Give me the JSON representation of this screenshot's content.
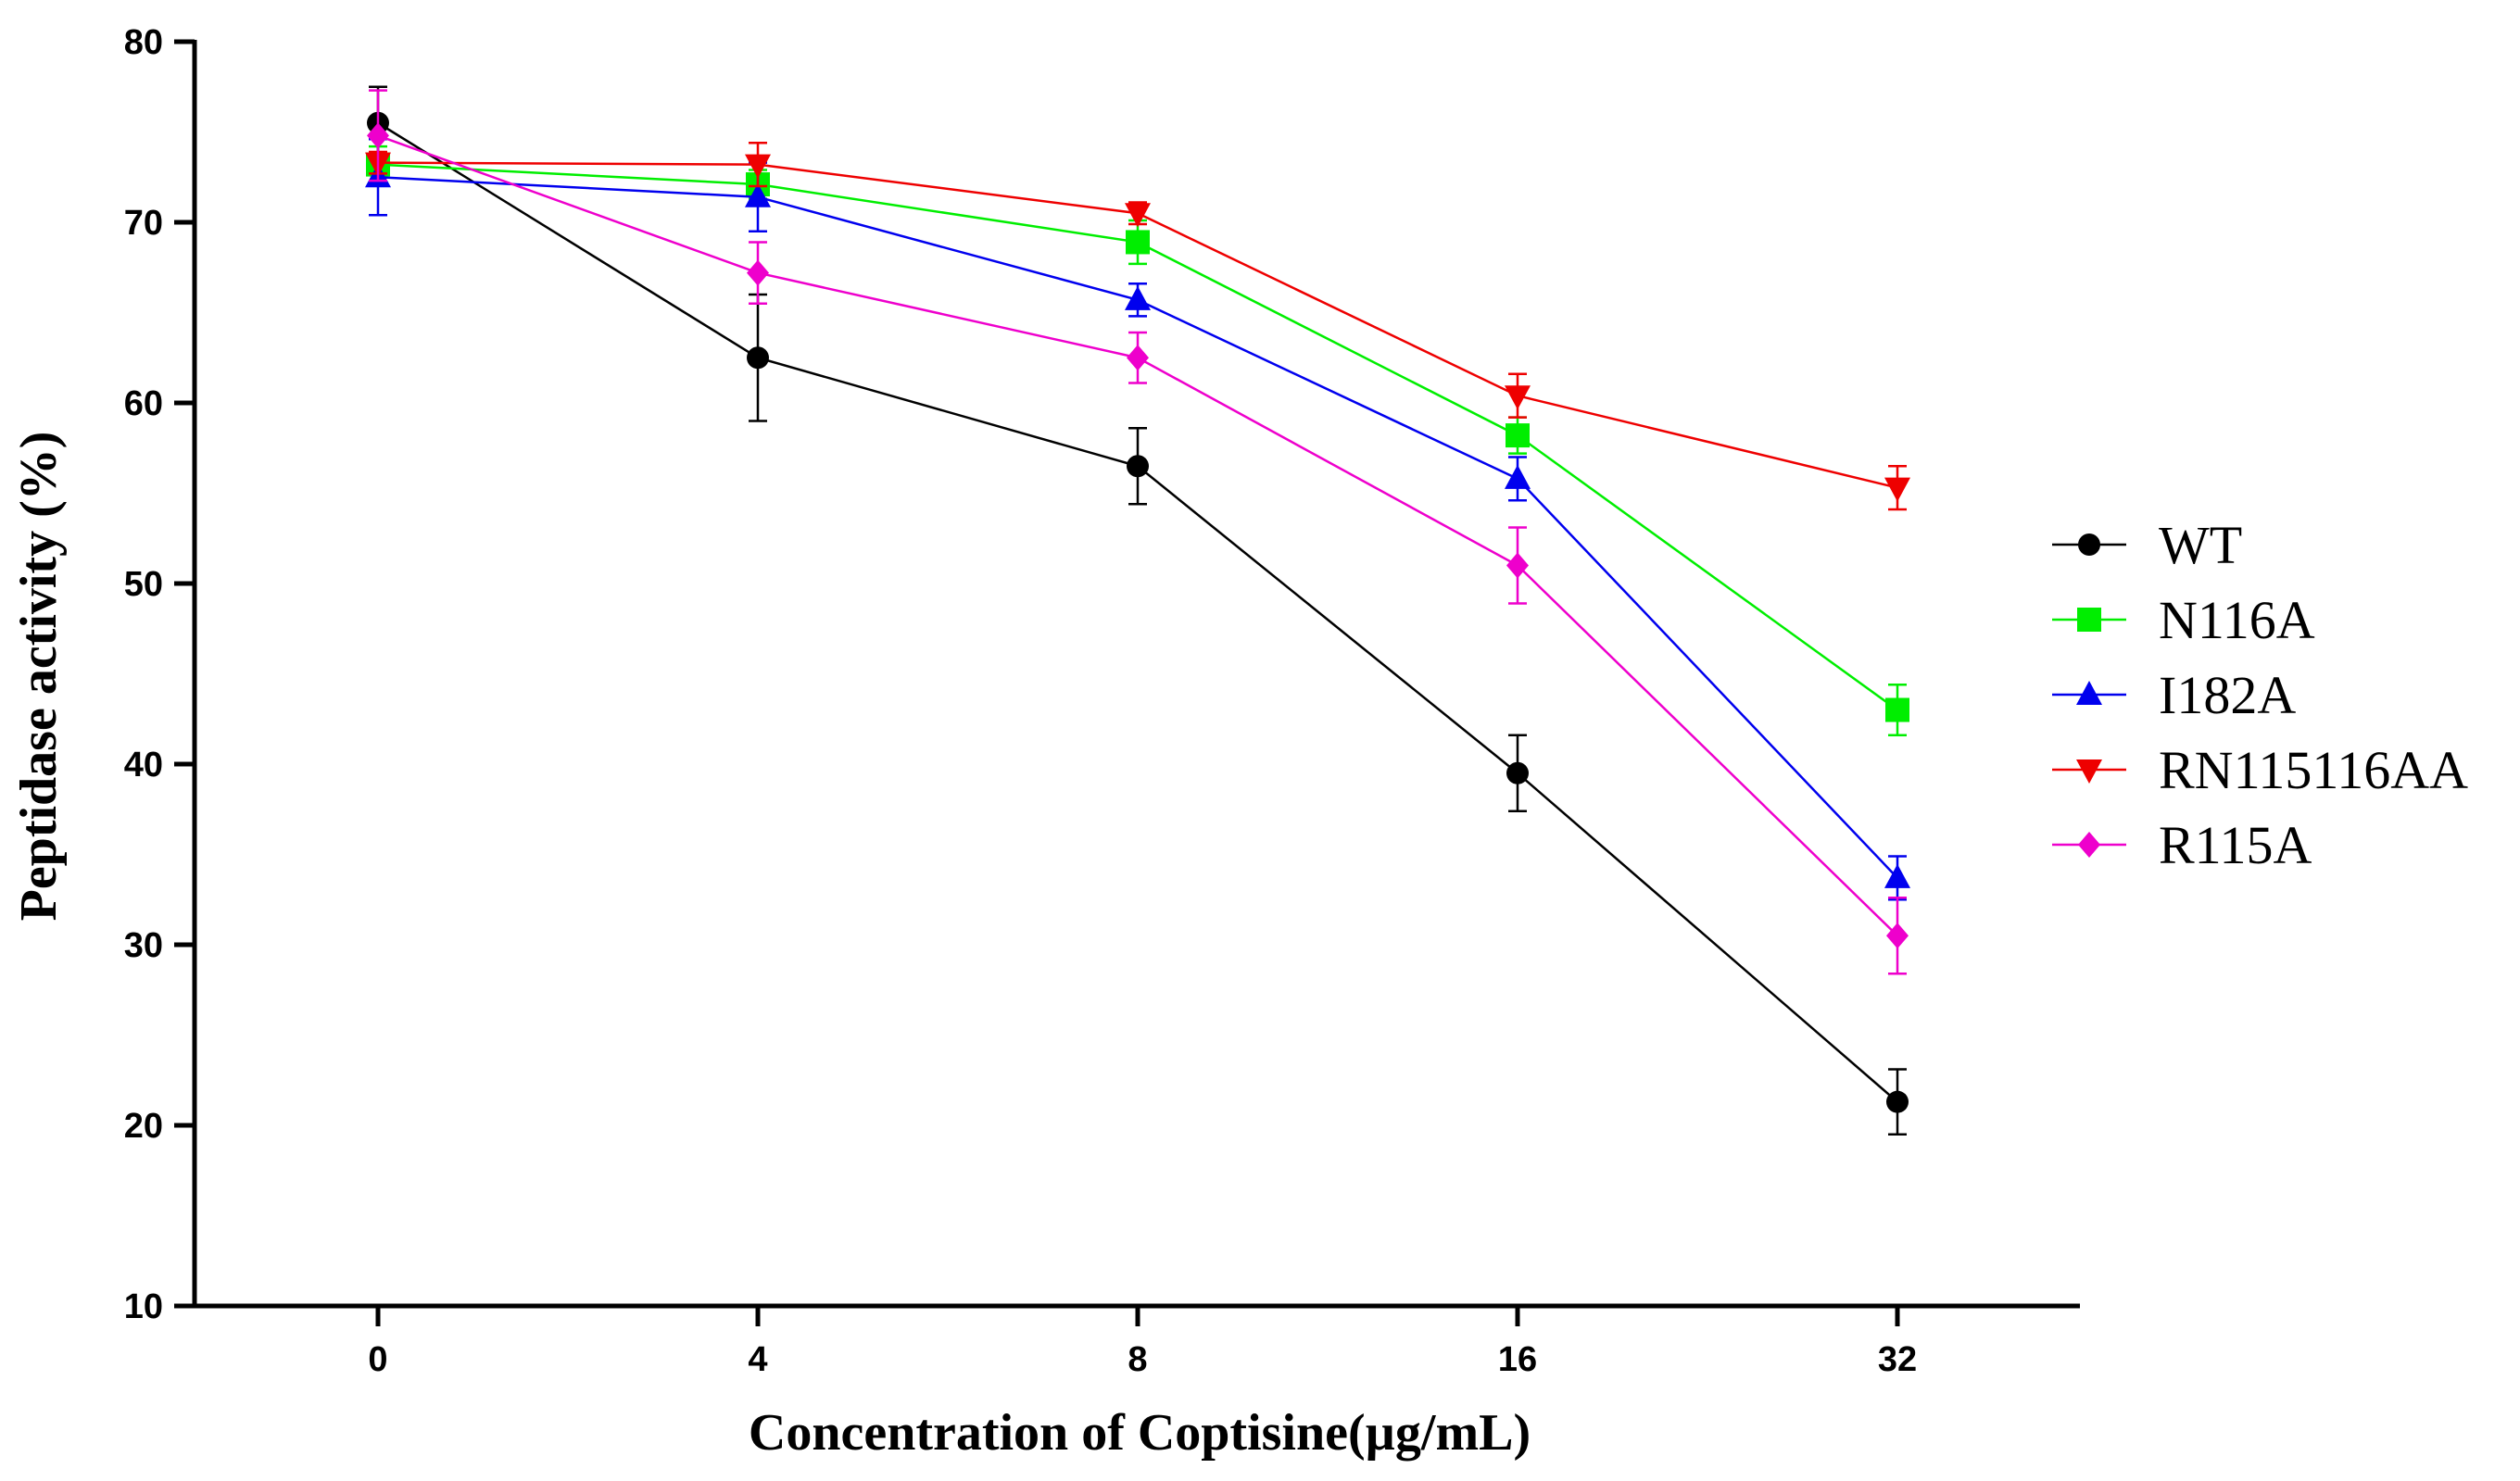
{
  "chart_data": {
    "type": "line",
    "xlabel": "Concentration of Coptisine(µg/mL)",
    "ylabel": "Peptidase activity (%)",
    "categories": [
      "0",
      "4",
      "8",
      "16",
      "32"
    ],
    "ylim": [
      10,
      80
    ],
    "yticks": [
      10,
      20,
      30,
      40,
      50,
      60,
      70,
      80
    ],
    "legend_position": "right",
    "series": [
      {
        "name": "WT",
        "color": "#000000",
        "marker": "circle",
        "values": [
          75.5,
          62.5,
          56.5,
          39.5,
          21.3
        ],
        "errors": [
          2.0,
          3.5,
          2.1,
          2.1,
          1.8
        ]
      },
      {
        "name": "N116A",
        "color": "#00ee00",
        "marker": "square",
        "values": [
          73.2,
          72.1,
          68.9,
          58.2,
          43.0
        ],
        "errors": [
          1.0,
          0.8,
          1.2,
          1.0,
          1.4
        ]
      },
      {
        "name": "I182A",
        "color": "#0000ee",
        "marker": "triangle-up",
        "values": [
          72.5,
          71.4,
          65.7,
          55.8,
          33.7
        ],
        "errors": [
          2.1,
          1.9,
          0.9,
          1.2,
          1.2
        ]
      },
      {
        "name": "RN115116AA",
        "color": "#ee0000",
        "marker": "triangle-down",
        "values": [
          73.3,
          73.2,
          70.5,
          60.4,
          55.3
        ],
        "errors": [
          0.6,
          1.2,
          0.6,
          1.2,
          1.2
        ]
      },
      {
        "name": "R115A",
        "color": "#ee00cc",
        "marker": "diamond",
        "values": [
          74.8,
          67.2,
          62.5,
          51.0,
          30.5
        ],
        "errors": [
          2.5,
          1.7,
          1.4,
          2.1,
          2.1
        ]
      }
    ]
  }
}
